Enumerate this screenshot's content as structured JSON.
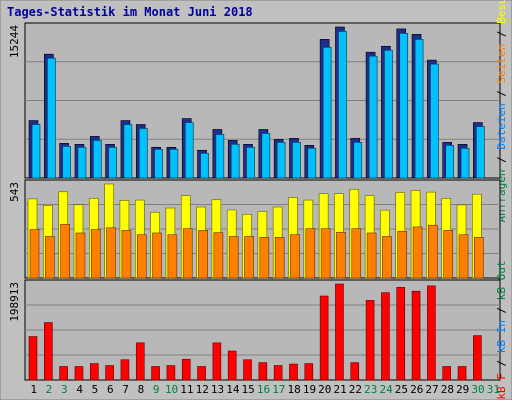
{
  "colors": {
    "background": "#c0c0c0",
    "plot_background": "#b8b8b8",
    "title": "#0000a0",
    "weekday_label": "#000000",
    "weekend_label": "#008040",
    "hits": "#4060ff",
    "files": "#00c0ff",
    "visits": "#ffff00",
    "sites": "#ff8000",
    "kbf": "#ff0000",
    "kbin": "#0080ff",
    "kbout": "#008040"
  },
  "chart_data": {
    "type": "bar",
    "title": "Tages-Statistik im Monat Juni 2018",
    "categories": [
      "1",
      "2",
      "3",
      "4",
      "5",
      "6",
      "7",
      "8",
      "9",
      "10",
      "11",
      "12",
      "13",
      "14",
      "15",
      "16",
      "17",
      "18",
      "19",
      "20",
      "21",
      "22",
      "23",
      "24",
      "25",
      "26",
      "27",
      "28",
      "29",
      "30",
      "31"
    ],
    "weekend_days": [
      "2",
      "3",
      "9",
      "10",
      "16",
      "17",
      "23",
      "24",
      "30",
      "31"
    ],
    "panels": [
      {
        "name": "requests",
        "max_label": "15244",
        "ylim": [
          0,
          15244
        ],
        "right_labels": [
          {
            "text": "Anfragen",
            "color": "#008040"
          },
          {
            "text": " / ",
            "color": "#000000"
          },
          {
            "text": "Dateien",
            "color": "#0080ff"
          },
          {
            "text": " / ",
            "color": "#000000"
          },
          {
            "text": "Seiten",
            "color": "#ff8000"
          },
          {
            "text": " / ",
            "color": "#000000"
          },
          {
            "text": "Besuche",
            "color": "#ffff00"
          }
        ],
        "series": [
          {
            "name": "Anfragen",
            "values": [
              5800,
              12500,
              3500,
              3400,
              4200,
              3400,
              5800,
              5400,
              3100,
              3100,
              6000,
              2800,
              4900,
              3800,
              3400,
              4900,
              3900,
              4000,
              3300,
              14000,
              15244,
              4000,
              12700,
              13300,
              15050,
              14500,
              11900,
              3600,
              3400,
              5600,
              null
            ]
          },
          {
            "name": "Dateien",
            "values": [
              5400,
              12100,
              3200,
              3100,
              3800,
              3100,
              5400,
              5000,
              2900,
              2900,
              5600,
              2500,
              4400,
              3400,
              3100,
              4500,
              3600,
              3600,
              3000,
              13200,
              14800,
              3600,
              12300,
              12900,
              14600,
              14000,
              11500,
              3300,
              3000,
              5200,
              null
            ]
          }
        ]
      },
      {
        "name": "visits",
        "max_label": "543",
        "ylim": [
          0,
          543
        ],
        "series": [
          {
            "name": "Besuche",
            "values": [
              457,
              420,
              498,
              423,
              460,
              543,
              448,
              450,
              380,
              404,
              476,
              410,
              452,
              393,
              368,
              384,
              410,
              465,
              450,
              487,
              487,
              512,
              476,
              392,
              494,
              506,
              496,
              460,
              422,
              484,
              null
            ]
          },
          {
            "name": "Seiten",
            "values": [
              280,
              240,
              310,
              260,
              280,
              290,
              275,
              250,
              260,
              250,
              285,
              275,
              262,
              240,
              240,
              235,
              235,
              250,
              285,
              285,
              264,
              285,
              260,
              240,
              270,
              295,
              305,
              275,
              250,
              235,
              null
            ]
          }
        ]
      },
      {
        "name": "kbytes",
        "max_label": "198913",
        "ylim": [
          0,
          198913
        ],
        "right_labels": [
          {
            "text": "kB F",
            "color": "#ff0000"
          },
          {
            "text": " / ",
            "color": "#000000"
          },
          {
            "text": "kB In",
            "color": "#0080ff"
          },
          {
            "text": " / ",
            "color": "#000000"
          },
          {
            "text": "kB Out",
            "color": "#008040"
          }
        ],
        "series": [
          {
            "name": "kB F",
            "values": [
              90000,
              119000,
              28000,
              28000,
              34000,
              30000,
              42000,
              77000,
              28000,
              30000,
              43000,
              28000,
              77000,
              60000,
              42000,
              36000,
              30000,
              33000,
              34000,
              174000,
              198913,
              36000,
              165000,
              181000,
              192000,
              184000,
              195000,
              28000,
              28000,
              92000,
              null
            ]
          }
        ]
      }
    ]
  }
}
